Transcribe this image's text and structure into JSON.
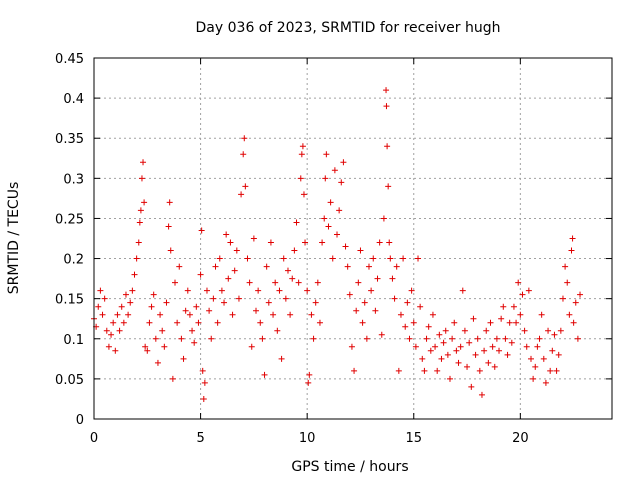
{
  "chart_data": {
    "type": "scatter",
    "title": "Day 036 of 2023, SRMTID for receiver hugh",
    "xlabel": "GPS time / hours",
    "ylabel": "SRMTID / TECUs",
    "xlim": [
      0,
      24.3
    ],
    "ylim": [
      0,
      0.45
    ],
    "x_ticks": [
      0,
      5,
      10,
      15,
      20
    ],
    "x_tick_labels": [
      "0",
      "5",
      "10",
      "15",
      "20"
    ],
    "y_ticks": [
      0,
      0.05,
      0.1,
      0.15,
      0.2,
      0.25,
      0.3,
      0.35,
      0.4,
      0.45
    ],
    "y_tick_labels": [
      "0",
      "0.05",
      "0.1",
      "0.15",
      "0.2",
      "0.25",
      "0.3",
      "0.35",
      "0.4",
      "0.45"
    ],
    "grid": true,
    "marker": "+",
    "color": "#e00000",
    "series": [
      {
        "name": "SRMTID",
        "points": [
          [
            0.0,
            0.125
          ],
          [
            0.1,
            0.115
          ],
          [
            0.2,
            0.14
          ],
          [
            0.3,
            0.16
          ],
          [
            0.4,
            0.13
          ],
          [
            0.5,
            0.15
          ],
          [
            0.6,
            0.11
          ],
          [
            0.7,
            0.09
          ],
          [
            0.8,
            0.105
          ],
          [
            0.9,
            0.12
          ],
          [
            1.0,
            0.085
          ],
          [
            1.1,
            0.13
          ],
          [
            1.2,
            0.11
          ],
          [
            1.3,
            0.14
          ],
          [
            1.4,
            0.12
          ],
          [
            1.5,
            0.155
          ],
          [
            1.6,
            0.13
          ],
          [
            1.7,
            0.145
          ],
          [
            1.8,
            0.16
          ],
          [
            1.9,
            0.18
          ],
          [
            2.0,
            0.2
          ],
          [
            2.1,
            0.22
          ],
          [
            2.15,
            0.245
          ],
          [
            2.2,
            0.26
          ],
          [
            2.25,
            0.3
          ],
          [
            2.3,
            0.32
          ],
          [
            2.35,
            0.27
          ],
          [
            2.4,
            0.09
          ],
          [
            2.5,
            0.085
          ],
          [
            2.6,
            0.12
          ],
          [
            2.7,
            0.14
          ],
          [
            2.8,
            0.155
          ],
          [
            2.9,
            0.1
          ],
          [
            3.0,
            0.07
          ],
          [
            3.1,
            0.13
          ],
          [
            3.2,
            0.11
          ],
          [
            3.3,
            0.09
          ],
          [
            3.4,
            0.145
          ],
          [
            3.5,
            0.24
          ],
          [
            3.55,
            0.27
          ],
          [
            3.6,
            0.21
          ],
          [
            3.7,
            0.05
          ],
          [
            3.8,
            0.17
          ],
          [
            3.9,
            0.12
          ],
          [
            4.0,
            0.19
          ],
          [
            4.1,
            0.1
          ],
          [
            4.2,
            0.075
          ],
          [
            4.3,
            0.135
          ],
          [
            4.4,
            0.16
          ],
          [
            4.5,
            0.13
          ],
          [
            4.6,
            0.11
          ],
          [
            4.7,
            0.095
          ],
          [
            4.8,
            0.14
          ],
          [
            4.9,
            0.12
          ],
          [
            5.0,
            0.18
          ],
          [
            5.05,
            0.235
          ],
          [
            5.1,
            0.06
          ],
          [
            5.15,
            0.025
          ],
          [
            5.2,
            0.045
          ],
          [
            5.3,
            0.16
          ],
          [
            5.4,
            0.135
          ],
          [
            5.5,
            0.1
          ],
          [
            5.6,
            0.15
          ],
          [
            5.7,
            0.19
          ],
          [
            5.8,
            0.12
          ],
          [
            5.9,
            0.2
          ],
          [
            6.0,
            0.16
          ],
          [
            6.1,
            0.145
          ],
          [
            6.2,
            0.23
          ],
          [
            6.3,
            0.175
          ],
          [
            6.4,
            0.22
          ],
          [
            6.5,
            0.13
          ],
          [
            6.6,
            0.185
          ],
          [
            6.7,
            0.21
          ],
          [
            6.8,
            0.15
          ],
          [
            6.9,
            0.28
          ],
          [
            7.0,
            0.33
          ],
          [
            7.05,
            0.35
          ],
          [
            7.1,
            0.29
          ],
          [
            7.2,
            0.2
          ],
          [
            7.3,
            0.17
          ],
          [
            7.4,
            0.09
          ],
          [
            7.5,
            0.225
          ],
          [
            7.6,
            0.135
          ],
          [
            7.7,
            0.16
          ],
          [
            7.8,
            0.12
          ],
          [
            7.9,
            0.1
          ],
          [
            8.0,
            0.055
          ],
          [
            8.1,
            0.19
          ],
          [
            8.2,
            0.145
          ],
          [
            8.3,
            0.22
          ],
          [
            8.4,
            0.13
          ],
          [
            8.5,
            0.17
          ],
          [
            8.6,
            0.11
          ],
          [
            8.7,
            0.16
          ],
          [
            8.8,
            0.075
          ],
          [
            8.9,
            0.2
          ],
          [
            9.0,
            0.15
          ],
          [
            9.1,
            0.185
          ],
          [
            9.2,
            0.13
          ],
          [
            9.3,
            0.175
          ],
          [
            9.4,
            0.21
          ],
          [
            9.5,
            0.245
          ],
          [
            9.6,
            0.17
          ],
          [
            9.7,
            0.3
          ],
          [
            9.75,
            0.33
          ],
          [
            9.8,
            0.34
          ],
          [
            9.85,
            0.28
          ],
          [
            9.9,
            0.22
          ],
          [
            10.0,
            0.16
          ],
          [
            10.05,
            0.045
          ],
          [
            10.1,
            0.055
          ],
          [
            10.2,
            0.13
          ],
          [
            10.3,
            0.1
          ],
          [
            10.4,
            0.145
          ],
          [
            10.5,
            0.17
          ],
          [
            10.6,
            0.12
          ],
          [
            10.7,
            0.22
          ],
          [
            10.8,
            0.25
          ],
          [
            10.85,
            0.3
          ],
          [
            10.9,
            0.33
          ],
          [
            11.0,
            0.24
          ],
          [
            11.1,
            0.27
          ],
          [
            11.2,
            0.2
          ],
          [
            11.3,
            0.31
          ],
          [
            11.4,
            0.23
          ],
          [
            11.5,
            0.26
          ],
          [
            11.6,
            0.295
          ],
          [
            11.7,
            0.32
          ],
          [
            11.8,
            0.215
          ],
          [
            11.9,
            0.19
          ],
          [
            12.0,
            0.155
          ],
          [
            12.1,
            0.09
          ],
          [
            12.2,
            0.06
          ],
          [
            12.3,
            0.135
          ],
          [
            12.4,
            0.17
          ],
          [
            12.5,
            0.21
          ],
          [
            12.6,
            0.12
          ],
          [
            12.7,
            0.145
          ],
          [
            12.8,
            0.1
          ],
          [
            12.9,
            0.19
          ],
          [
            13.0,
            0.16
          ],
          [
            13.1,
            0.2
          ],
          [
            13.2,
            0.135
          ],
          [
            13.3,
            0.175
          ],
          [
            13.4,
            0.22
          ],
          [
            13.5,
            0.105
          ],
          [
            13.6,
            0.25
          ],
          [
            13.7,
            0.41
          ],
          [
            13.72,
            0.39
          ],
          [
            13.75,
            0.34
          ],
          [
            13.8,
            0.29
          ],
          [
            13.85,
            0.22
          ],
          [
            13.9,
            0.2
          ],
          [
            14.0,
            0.175
          ],
          [
            14.1,
            0.15
          ],
          [
            14.2,
            0.19
          ],
          [
            14.3,
            0.06
          ],
          [
            14.4,
            0.13
          ],
          [
            14.5,
            0.2
          ],
          [
            14.6,
            0.115
          ],
          [
            14.7,
            0.145
          ],
          [
            14.8,
            0.1
          ],
          [
            14.9,
            0.16
          ],
          [
            15.0,
            0.12
          ],
          [
            15.1,
            0.09
          ],
          [
            15.2,
            0.2
          ],
          [
            15.3,
            0.14
          ],
          [
            15.4,
            0.075
          ],
          [
            15.5,
            0.06
          ],
          [
            15.6,
            0.1
          ],
          [
            15.7,
            0.115
          ],
          [
            15.8,
            0.085
          ],
          [
            15.9,
            0.13
          ],
          [
            16.0,
            0.09
          ],
          [
            16.1,
            0.06
          ],
          [
            16.2,
            0.105
          ],
          [
            16.3,
            0.075
          ],
          [
            16.4,
            0.095
          ],
          [
            16.5,
            0.11
          ],
          [
            16.6,
            0.08
          ],
          [
            16.7,
            0.05
          ],
          [
            16.8,
            0.1
          ],
          [
            16.9,
            0.12
          ],
          [
            17.0,
            0.085
          ],
          [
            17.1,
            0.07
          ],
          [
            17.2,
            0.09
          ],
          [
            17.3,
            0.16
          ],
          [
            17.4,
            0.11
          ],
          [
            17.5,
            0.065
          ],
          [
            17.6,
            0.095
          ],
          [
            17.7,
            0.04
          ],
          [
            17.8,
            0.125
          ],
          [
            17.9,
            0.08
          ],
          [
            18.0,
            0.1
          ],
          [
            18.1,
            0.06
          ],
          [
            18.2,
            0.03
          ],
          [
            18.3,
            0.085
          ],
          [
            18.4,
            0.11
          ],
          [
            18.5,
            0.07
          ],
          [
            18.6,
            0.12
          ],
          [
            18.7,
            0.09
          ],
          [
            18.8,
            0.065
          ],
          [
            18.9,
            0.1
          ],
          [
            19.0,
            0.085
          ],
          [
            19.1,
            0.125
          ],
          [
            19.2,
            0.14
          ],
          [
            19.3,
            0.1
          ],
          [
            19.4,
            0.08
          ],
          [
            19.5,
            0.12
          ],
          [
            19.6,
            0.095
          ],
          [
            19.7,
            0.14
          ],
          [
            19.8,
            0.12
          ],
          [
            19.9,
            0.17
          ],
          [
            20.0,
            0.13
          ],
          [
            20.1,
            0.155
          ],
          [
            20.2,
            0.11
          ],
          [
            20.3,
            0.09
          ],
          [
            20.4,
            0.16
          ],
          [
            20.5,
            0.075
          ],
          [
            20.6,
            0.05
          ],
          [
            20.7,
            0.065
          ],
          [
            20.8,
            0.09
          ],
          [
            20.9,
            0.1
          ],
          [
            21.0,
            0.13
          ],
          [
            21.1,
            0.075
          ],
          [
            21.2,
            0.045
          ],
          [
            21.3,
            0.11
          ],
          [
            21.4,
            0.06
          ],
          [
            21.5,
            0.085
          ],
          [
            21.6,
            0.105
          ],
          [
            21.7,
            0.06
          ],
          [
            21.8,
            0.08
          ],
          [
            21.9,
            0.11
          ],
          [
            22.0,
            0.15
          ],
          [
            22.1,
            0.19
          ],
          [
            22.2,
            0.17
          ],
          [
            22.3,
            0.13
          ],
          [
            22.4,
            0.21
          ],
          [
            22.45,
            0.225
          ],
          [
            22.5,
            0.12
          ],
          [
            22.6,
            0.145
          ],
          [
            22.7,
            0.1
          ],
          [
            22.8,
            0.155
          ]
        ]
      }
    ]
  }
}
